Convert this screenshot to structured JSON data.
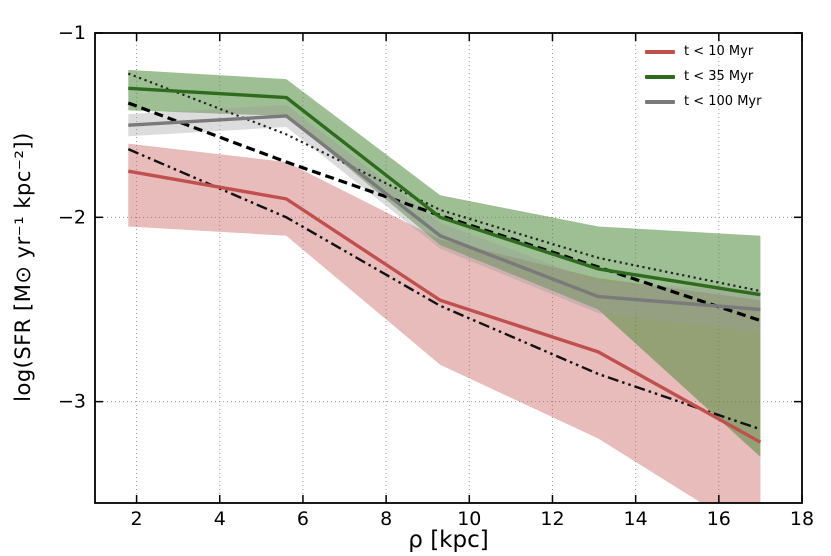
{
  "figure": {
    "background": "#ffffff"
  },
  "chart_data": {
    "type": "line",
    "title": "",
    "xlabel": "ρ [kpc]",
    "ylabel": "log(SFR [M⊙ yr⁻¹ kpc⁻²])",
    "xlim": [
      1,
      18
    ],
    "ylim": [
      -3.55,
      -1.0
    ],
    "xticks": [
      2,
      4,
      6,
      8,
      10,
      12,
      14,
      16,
      18
    ],
    "yticks": [
      -1,
      -2,
      -3
    ],
    "grid": true,
    "grid_color": "#999999",
    "x": [
      1.8,
      5.6,
      9.3,
      13.1,
      17.0
    ],
    "series": [
      {
        "name": "t < 10 Myr",
        "color": "#c0504d",
        "band_color": "#c0504d",
        "band_opacity": 0.38,
        "values": [
          -1.75,
          -1.9,
          -2.45,
          -2.73,
          -3.22
        ],
        "band_upper": [
          -1.6,
          -1.7,
          -2.12,
          -2.33,
          -2.45
        ],
        "band_lower": [
          -2.05,
          -2.1,
          -2.8,
          -3.2,
          -3.75
        ]
      },
      {
        "name": "t < 35 Myr",
        "color": "#2e6b1f",
        "band_color": "#4e8a3a",
        "band_opacity": 0.55,
        "values": [
          -1.3,
          -1.35,
          -2.0,
          -2.28,
          -2.42
        ],
        "band_upper": [
          -1.2,
          -1.25,
          -1.88,
          -2.05,
          -2.1
        ],
        "band_lower": [
          -1.42,
          -1.45,
          -2.15,
          -2.5,
          -3.3
        ]
      },
      {
        "name": "t < 100 Myr",
        "color": "#7a7a7a",
        "band_color": "#9a9a9a",
        "band_opacity": 0.35,
        "values": [
          -1.5,
          -1.45,
          -2.1,
          -2.43,
          -2.5
        ],
        "band_upper": [
          -1.44,
          -1.39,
          -2.03,
          -2.35,
          -2.4
        ],
        "band_lower": [
          -1.56,
          -1.51,
          -2.17,
          -2.52,
          -2.62
        ]
      }
    ],
    "fit_lines": [
      {
        "name": "fit-line-dashed",
        "style": "dashed",
        "color": "#000000",
        "x": [
          1.8,
          5.6,
          9.3,
          13.1,
          17.0
        ],
        "y": [
          -1.38,
          -1.7,
          -1.99,
          -2.27,
          -2.56
        ]
      },
      {
        "name": "fit-line-dotted",
        "style": "dotted",
        "color": "#222222",
        "x": [
          1.8,
          5.6,
          9.3,
          13.1,
          17.0
        ],
        "y": [
          -1.22,
          -1.55,
          -1.96,
          -2.22,
          -2.4
        ]
      },
      {
        "name": "fit-line-dashdot",
        "style": "dashdot",
        "color": "#111111",
        "x": [
          1.8,
          5.6,
          9.3,
          13.1,
          17.0
        ],
        "y": [
          -1.63,
          -2.0,
          -2.48,
          -2.85,
          -3.15
        ]
      }
    ],
    "legend": {
      "position": "upper right",
      "entries": [
        {
          "label": "t < 10 Myr",
          "color": "#c0504d"
        },
        {
          "label": "t < 35 Myr",
          "color": "#2e6b1f"
        },
        {
          "label": "t < 100 Myr",
          "color": "#7a7a7a"
        }
      ]
    }
  }
}
